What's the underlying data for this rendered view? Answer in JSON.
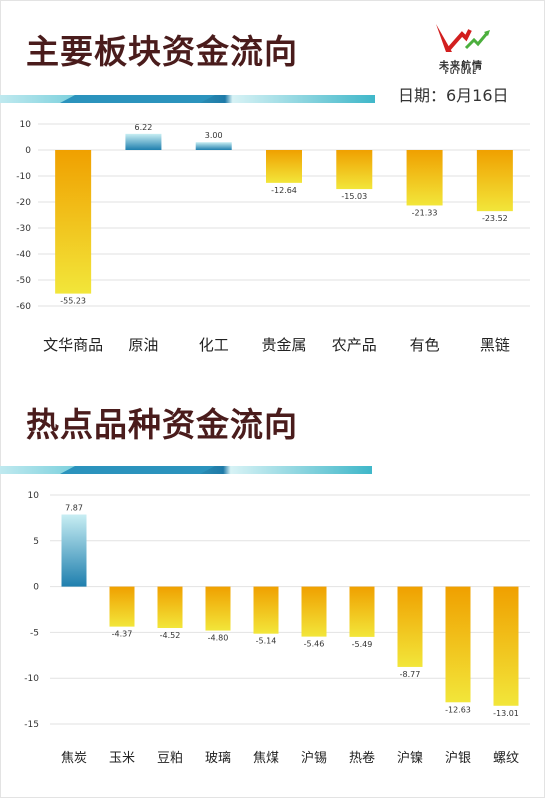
{
  "header": {
    "date_label": "日期：6月16日",
    "logo_cn": "未来航情",
    "logo_en": "FUTURE"
  },
  "colors": {
    "title": "#4a1c1c",
    "neg_top": "#f0a000",
    "neg_bottom": "#f2e63a",
    "pos_top": "#c8eef3",
    "pos_bottom": "#1f7fae",
    "band_teal": "#3fb7c9",
    "band_dark": "#1e7aa8"
  },
  "chart_data": [
    {
      "type": "bar",
      "title": "主要板块资金流向",
      "categories": [
        "文华商品",
        "原油",
        "化工",
        "贵金属",
        "农产品",
        "有色",
        "黑链"
      ],
      "values": [
        -55.23,
        6.22,
        3.0,
        -12.64,
        -15.03,
        -21.33,
        -23.52
      ],
      "value_labels": [
        "-55.23",
        "6.22",
        "3.00",
        "-12.64",
        "-15.03",
        "-21.33",
        "-23.52"
      ],
      "yticks": [
        10,
        0,
        -10,
        -20,
        -30,
        -40,
        -50,
        -60
      ],
      "ylim": [
        -60,
        10
      ],
      "grid": true,
      "xlabel": "",
      "ylabel": ""
    },
    {
      "type": "bar",
      "title": "热点品种资金流向",
      "categories": [
        "焦炭",
        "玉米",
        "豆粕",
        "玻璃",
        "焦煤",
        "沪锡",
        "热卷",
        "沪镍",
        "沪银",
        "螺纹"
      ],
      "values": [
        7.87,
        -4.37,
        -4.52,
        -4.8,
        -5.14,
        -5.46,
        -5.49,
        -8.77,
        -12.63,
        -13.01
      ],
      "value_labels": [
        "7.87",
        "-4.37",
        "-4.52",
        "-4.80",
        "-5.14",
        "-5.46",
        "-5.49",
        "-8.77",
        "-12.63",
        "-13.01"
      ],
      "yticks": [
        10,
        5,
        0,
        -5,
        -10,
        -15
      ],
      "ylim": [
        -15,
        10
      ],
      "grid": true,
      "xlabel": "",
      "ylabel": ""
    }
  ]
}
